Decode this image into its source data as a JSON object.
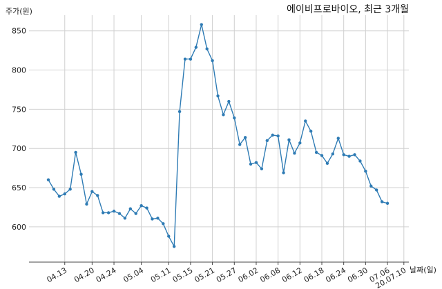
{
  "chart_data": {
    "type": "line",
    "title": "에이비프로바이오, 최근 3개월",
    "xlabel": "날짜(일)",
    "ylabel": "주가(원)",
    "ylim": [
      555,
      870
    ],
    "yticks": [
      600,
      650,
      700,
      750,
      800,
      850
    ],
    "grid": true,
    "x_tick_labels": [
      "04.13",
      "04.20",
      "04.24",
      "05.04",
      "05.11",
      "05.15",
      "05.21",
      "05.27",
      "06.02",
      "06.08",
      "06.12",
      "06.18",
      "06.24",
      "06.30",
      "07.06",
      "20.07.10"
    ],
    "x_tick_index": [
      3,
      8,
      12,
      17,
      22,
      26,
      30,
      34,
      38,
      42,
      46,
      50,
      54,
      58,
      62,
      65
    ],
    "series": [
      {
        "values": [
          660,
          648,
          639,
          642,
          648,
          695,
          667,
          629,
          645,
          640,
          618,
          618,
          620,
          617,
          611,
          623,
          617,
          627,
          624,
          610,
          611,
          604,
          588,
          575,
          747,
          814,
          814,
          829,
          858,
          827,
          812,
          767,
          743,
          760,
          739,
          705,
          714,
          680,
          682,
          674,
          710,
          717,
          716,
          669,
          711,
          694,
          707,
          735,
          722,
          695,
          691,
          681,
          693,
          713,
          692,
          690,
          692,
          684,
          671,
          652,
          647,
          632,
          630
        ]
      }
    ]
  }
}
